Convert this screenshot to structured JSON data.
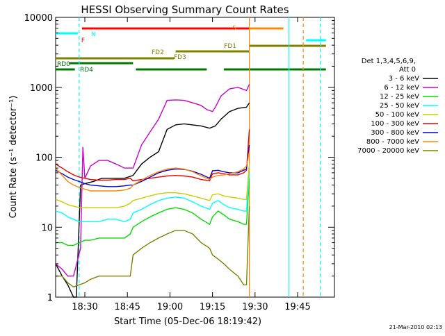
{
  "chart_data": {
    "type": "line",
    "title": "HESSI Observing Summary Count Rates",
    "xlabel": "Start Time (05-Dec-06 18:19:42)",
    "ylabel": "Count Rate (s⁻¹ detector⁻¹)",
    "yscale": "log",
    "ylim": [
      1,
      10000
    ],
    "xlim": [
      "18:19:42",
      "19:58:00"
    ],
    "x_unit": "minutes since 18:00 (UT)",
    "x_ticks": [
      {
        "label": "18:30",
        "x": 30
      },
      {
        "label": "18:45",
        "x": 45
      },
      {
        "label": "19:00",
        "x": 60
      },
      {
        "label": "19:15",
        "x": 75
      },
      {
        "label": "19:30",
        "x": 90
      },
      {
        "label": "19:45",
        "x": 105
      }
    ],
    "y_ticks": [
      {
        "label": "1",
        "y": 1
      },
      {
        "label": "10",
        "y": 10
      },
      {
        "label": "100",
        "y": 100
      },
      {
        "label": "1000",
        "y": 1000
      },
      {
        "label": "10000",
        "y": 10000
      }
    ],
    "legend_title": [
      "Det 1,3,4,5,6,9,",
      "Att 0"
    ],
    "legend_position": "right",
    "series": [
      {
        "name": "3 - 6 keV",
        "color": "#000000",
        "points": [
          [
            19.7,
            3
          ],
          [
            22,
            2
          ],
          [
            24,
            1.5
          ],
          [
            26,
            1
          ],
          [
            27,
            1
          ],
          [
            28.5,
            40
          ],
          [
            30,
            42
          ],
          [
            33,
            45
          ],
          [
            36,
            50
          ],
          [
            40,
            50
          ],
          [
            44,
            50
          ],
          [
            47,
            55
          ],
          [
            50,
            80
          ],
          [
            53,
            100
          ],
          [
            56,
            120
          ],
          [
            59,
            250
          ],
          [
            62,
            290
          ],
          [
            65,
            300
          ],
          [
            68,
            290
          ],
          [
            71,
            280
          ],
          [
            74,
            260
          ],
          [
            76,
            280
          ],
          [
            78,
            350
          ],
          [
            81,
            450
          ],
          [
            84,
            500
          ],
          [
            87,
            520
          ],
          [
            88,
            600
          ]
        ]
      },
      {
        "name": "6 - 12 keV",
        "color": "#cc00cc",
        "points": [
          [
            19.7,
            3
          ],
          [
            22,
            2.5
          ],
          [
            24,
            2
          ],
          [
            26,
            2
          ],
          [
            28.5,
            5
          ],
          [
            29,
            40
          ],
          [
            29.3,
            140
          ],
          [
            30,
            50
          ],
          [
            32,
            75
          ],
          [
            35,
            90
          ],
          [
            38,
            90
          ],
          [
            41,
            80
          ],
          [
            44,
            70
          ],
          [
            47,
            70
          ],
          [
            50,
            150
          ],
          [
            53,
            230
          ],
          [
            56,
            350
          ],
          [
            59,
            650
          ],
          [
            62,
            660
          ],
          [
            65,
            650
          ],
          [
            68,
            600
          ],
          [
            71,
            550
          ],
          [
            73,
            480
          ],
          [
            75,
            450
          ],
          [
            76,
            520
          ],
          [
            78,
            750
          ],
          [
            81,
            950
          ],
          [
            84,
            1000
          ],
          [
            87,
            900
          ],
          [
            88,
            1100
          ]
        ]
      },
      {
        "name": "12 - 25 keV",
        "color": "#00dd00",
        "points": [
          [
            19.7,
            6
          ],
          [
            22,
            6
          ],
          [
            24,
            5.5
          ],
          [
            26,
            5.5
          ],
          [
            28,
            6
          ],
          [
            30,
            6.5
          ],
          [
            32,
            6.5
          ],
          [
            35,
            7
          ],
          [
            38,
            7
          ],
          [
            41,
            7
          ],
          [
            44,
            7
          ],
          [
            46,
            8
          ],
          [
            47,
            10
          ],
          [
            50,
            12
          ],
          [
            53,
            14
          ],
          [
            56,
            16
          ],
          [
            59,
            18
          ],
          [
            62,
            19
          ],
          [
            65,
            18
          ],
          [
            68,
            16
          ],
          [
            71,
            13
          ],
          [
            74,
            11
          ],
          [
            75,
            14
          ],
          [
            77,
            17
          ],
          [
            79,
            15
          ],
          [
            81,
            13
          ],
          [
            84,
            12
          ],
          [
            86,
            11
          ],
          [
            87,
            11
          ],
          [
            88,
            50
          ]
        ]
      },
      {
        "name": "25 - 50 keV",
        "color": "#00ffff",
        "points": [
          [
            19.7,
            17
          ],
          [
            22,
            16
          ],
          [
            24,
            14
          ],
          [
            26,
            13
          ],
          [
            28,
            12
          ],
          [
            30,
            12
          ],
          [
            32,
            12
          ],
          [
            35,
            12
          ],
          [
            38,
            13
          ],
          [
            41,
            13
          ],
          [
            44,
            12
          ],
          [
            46,
            13
          ],
          [
            47,
            16
          ],
          [
            50,
            18
          ],
          [
            53,
            21
          ],
          [
            56,
            24
          ],
          [
            59,
            26
          ],
          [
            62,
            27
          ],
          [
            65,
            26
          ],
          [
            68,
            23
          ],
          [
            71,
            20
          ],
          [
            74,
            18
          ],
          [
            75,
            22
          ],
          [
            77,
            24
          ],
          [
            79,
            21
          ],
          [
            81,
            19
          ],
          [
            84,
            18
          ],
          [
            86,
            17
          ],
          [
            87,
            17
          ],
          [
            88,
            60
          ]
        ]
      },
      {
        "name": "50 - 100 keV",
        "color": "#cccc00",
        "points": [
          [
            19.7,
            25
          ],
          [
            22,
            23
          ],
          [
            24,
            21
          ],
          [
            26,
            20
          ],
          [
            28,
            19
          ],
          [
            30,
            19
          ],
          [
            32,
            19
          ],
          [
            35,
            19
          ],
          [
            38,
            19
          ],
          [
            41,
            19
          ],
          [
            44,
            20
          ],
          [
            46,
            22
          ],
          [
            47,
            24
          ],
          [
            50,
            26
          ],
          [
            53,
            28
          ],
          [
            56,
            30
          ],
          [
            59,
            31
          ],
          [
            62,
            31
          ],
          [
            65,
            30
          ],
          [
            68,
            28
          ],
          [
            71,
            26
          ],
          [
            74,
            24
          ],
          [
            75,
            29
          ],
          [
            77,
            30
          ],
          [
            79,
            28
          ],
          [
            81,
            27
          ],
          [
            84,
            26
          ],
          [
            86,
            25
          ],
          [
            87,
            25
          ],
          [
            88,
            80
          ]
        ]
      },
      {
        "name": "100 - 300 keV",
        "color": "#ee0000",
        "points": [
          [
            19.7,
            80
          ],
          [
            22,
            70
          ],
          [
            24,
            62
          ],
          [
            26,
            56
          ],
          [
            28,
            52
          ],
          [
            30,
            50
          ],
          [
            32,
            48
          ],
          [
            35,
            47
          ],
          [
            38,
            47
          ],
          [
            41,
            48
          ],
          [
            44,
            48
          ],
          [
            46,
            50
          ],
          [
            47,
            46
          ],
          [
            50,
            48
          ],
          [
            53,
            50
          ],
          [
            56,
            52
          ],
          [
            59,
            54
          ],
          [
            62,
            55
          ],
          [
            65,
            54
          ],
          [
            68,
            52
          ],
          [
            71,
            48
          ],
          [
            74,
            46
          ],
          [
            75,
            58
          ],
          [
            77,
            60
          ],
          [
            79,
            58
          ],
          [
            81,
            56
          ],
          [
            84,
            56
          ],
          [
            86,
            60
          ],
          [
            87,
            65
          ],
          [
            88,
            250
          ]
        ]
      },
      {
        "name": "300 - 800 keV",
        "color": "#0000dd",
        "points": [
          [
            19.7,
            65
          ],
          [
            22,
            58
          ],
          [
            24,
            52
          ],
          [
            26,
            48
          ],
          [
            28,
            45
          ],
          [
            30,
            42
          ],
          [
            32,
            40
          ],
          [
            35,
            39
          ],
          [
            38,
            38
          ],
          [
            41,
            38
          ],
          [
            44,
            39
          ],
          [
            46,
            40
          ],
          [
            47,
            40
          ],
          [
            50,
            45
          ],
          [
            53,
            52
          ],
          [
            56,
            60
          ],
          [
            59,
            65
          ],
          [
            62,
            68
          ],
          [
            65,
            67
          ],
          [
            68,
            63
          ],
          [
            71,
            57
          ],
          [
            74,
            50
          ],
          [
            75,
            64
          ],
          [
            77,
            65
          ],
          [
            79,
            62
          ],
          [
            81,
            60
          ],
          [
            84,
            60
          ],
          [
            86,
            65
          ],
          [
            87,
            68
          ],
          [
            88,
            150
          ]
        ]
      },
      {
        "name": "800 - 7000 keV",
        "color": "#ff8800",
        "points": [
          [
            19.7,
            70
          ],
          [
            22,
            55
          ],
          [
            24,
            45
          ],
          [
            26,
            40
          ],
          [
            28,
            37
          ],
          [
            30,
            35
          ],
          [
            32,
            33
          ],
          [
            35,
            33
          ],
          [
            38,
            33
          ],
          [
            41,
            33
          ],
          [
            44,
            34
          ],
          [
            46,
            36
          ],
          [
            47,
            40
          ],
          [
            50,
            47
          ],
          [
            53,
            55
          ],
          [
            56,
            62
          ],
          [
            59,
            68
          ],
          [
            62,
            70
          ],
          [
            65,
            68
          ],
          [
            68,
            62
          ],
          [
            71,
            54
          ],
          [
            74,
            48
          ],
          [
            75,
            52
          ],
          [
            77,
            55
          ],
          [
            79,
            56
          ],
          [
            81,
            58
          ],
          [
            84,
            62
          ],
          [
            86,
            68
          ],
          [
            87,
            75
          ],
          [
            88,
            120
          ]
        ]
      },
      {
        "name": "7000 - 20000 keV",
        "color": "#808000",
        "points": [
          [
            19.7,
            2
          ],
          [
            22,
            2
          ],
          [
            24,
            1.6
          ],
          [
            26,
            1.4
          ],
          [
            28,
            1.5
          ],
          [
            30,
            1.6
          ],
          [
            32,
            1.8
          ],
          [
            35,
            2
          ],
          [
            38,
            2
          ],
          [
            41,
            2
          ],
          [
            44,
            2
          ],
          [
            46,
            2
          ],
          [
            47,
            4
          ],
          [
            50,
            5
          ],
          [
            53,
            6
          ],
          [
            56,
            7
          ],
          [
            59,
            8
          ],
          [
            62,
            9
          ],
          [
            65,
            9
          ],
          [
            68,
            8
          ],
          [
            71,
            6
          ],
          [
            74,
            5
          ],
          [
            75,
            4
          ],
          [
            77,
            3.5
          ],
          [
            79,
            3
          ],
          [
            81,
            2.5
          ],
          [
            84,
            2
          ],
          [
            86,
            1.5
          ],
          [
            87,
            1.5
          ],
          [
            88,
            20
          ]
        ]
      }
    ],
    "flag_bars": [
      {
        "label": "N",
        "color": "#00ffff",
        "segments": [
          [
            19.7,
            27.5
          ]
        ]
      },
      {
        "label": "N",
        "color": "#00ffff",
        "segments": [
          [
            108,
            115
          ]
        ]
      },
      {
        "label": "F",
        "color": "#ff0000",
        "segments": [
          [
            29,
            88
          ]
        ]
      },
      {
        "label": "S",
        "color": "#ff8800",
        "segments": [
          [
            88,
            100
          ]
        ]
      },
      {
        "label": "FD1",
        "color": "#808000",
        "segments": [
          [
            88,
            115
          ]
        ]
      },
      {
        "label": "FD2",
        "color": "#808000",
        "segments": [
          [
            19.7,
            61.5
          ]
        ]
      },
      {
        "label": "FD3",
        "color": "#808000",
        "segments": [
          [
            62,
            88
          ]
        ]
      },
      {
        "label": "RD0",
        "color": "#007700",
        "segments": [
          [
            24.5,
            47
          ]
        ]
      },
      {
        "label": "RD4",
        "color": "#007700",
        "segments": [
          [
            19.7,
            26.5
          ],
          [
            48,
            73
          ],
          [
            79,
            115
          ]
        ]
      }
    ],
    "vertical_lines": [
      {
        "x": 28,
        "color": "#00ffff",
        "style": "dash"
      },
      {
        "x": 88,
        "color": "#ff8800",
        "style": "solid"
      },
      {
        "x": 102,
        "color": "#00ffff",
        "style": "solid"
      },
      {
        "x": 107,
        "color": "#ff8800",
        "style": "dash"
      },
      {
        "x": 113,
        "color": "#00ffff",
        "style": "dash"
      }
    ],
    "footer_text": "21-Mar-2010 02:13"
  }
}
